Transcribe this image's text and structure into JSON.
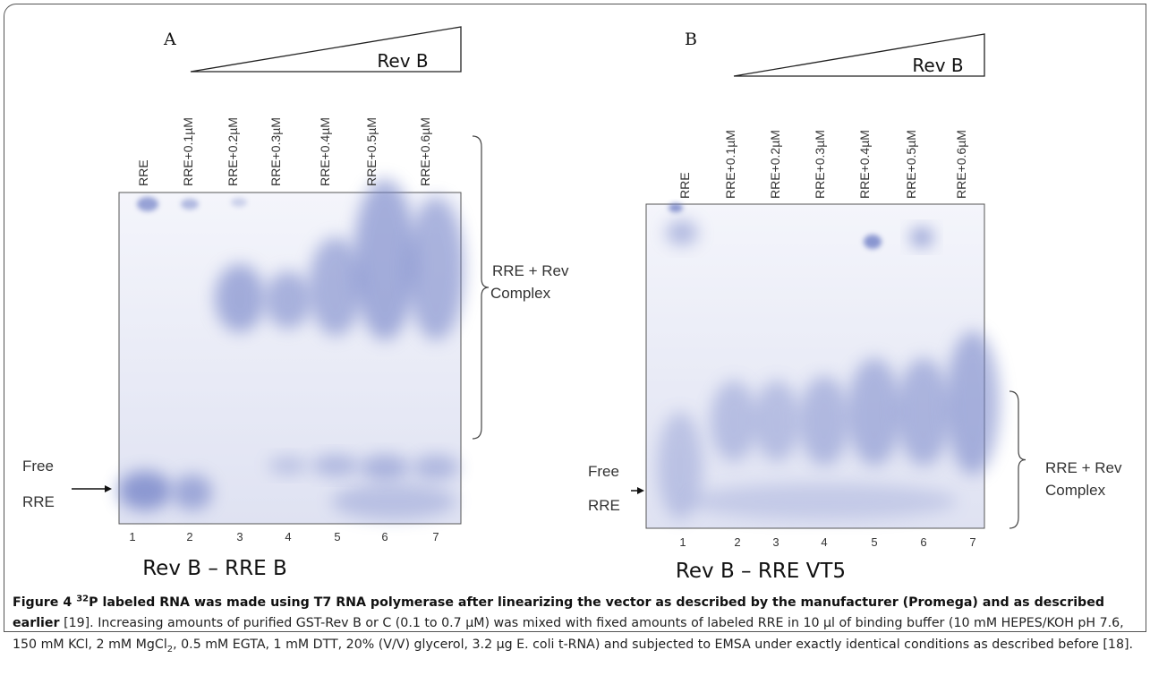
{
  "panels": [
    {
      "letter": "A",
      "wedge_label": "Rev B",
      "lanes": [
        {
          "label": "RRE",
          "number": 1
        },
        {
          "label": "RRE+0.1µM",
          "number": 2
        },
        {
          "label": "RRE+0.2µM",
          "number": 3
        },
        {
          "label": "RRE+0.3µM",
          "number": 4
        },
        {
          "label": "RRE+0.4µM",
          "number": 5
        },
        {
          "label": "RRE+0.5µM",
          "number": 6
        },
        {
          "label": "RRE+0.6µM",
          "number": 7
        }
      ],
      "free_label": "Free",
      "rre_label": "RRE",
      "complex_label_1": "RRE + Rev",
      "complex_label_2": "Complex",
      "title": "Rev B – RRE B"
    },
    {
      "letter": "B",
      "wedge_label": "Rev B",
      "lanes": [
        {
          "label": "RRE",
          "number": 1
        },
        {
          "label": "RRE+0.1µM",
          "number": 2
        },
        {
          "label": "RRE+0.2µM",
          "number": 3
        },
        {
          "label": "RRE+0.3µM",
          "number": 4
        },
        {
          "label": "RRE+0.4µM",
          "number": 5
        },
        {
          "label": "RRE+0.5µM",
          "number": 6
        },
        {
          "label": "RRE+0.6µM",
          "number": 7
        }
      ],
      "free_label": "Free",
      "rre_label": "RRE",
      "complex_label_1": "RRE + Rev",
      "complex_label_2": "Complex",
      "title": "Rev B – RRE VT5"
    }
  ],
  "caption": {
    "figure_label": "Figure 4",
    "isotope": "32",
    "title_text": "P labeled RNA was made using T7 RNA polymerase after linearizing the vector as described by the manufacturer (Promega) and as described earlier",
    "body_1": "[19]. Increasing amounts of purified GST-Rev B or C (0.1 to 0.7 µM) was mixed with fixed amounts of labeled RRE in 10 µl of binding buffer (10 mM HEPES/KOH pH 7.6, 150 mM KCl, 2 mM MgCl",
    "subscript": "2",
    "body_2": ", 0.5 mM EGTA, 1 mM DTT, 20% (V/V) glycerol, 3.2 µg E. coli t-RNA) and subjected to EMSA under exactly identical conditions as described before [18]."
  }
}
